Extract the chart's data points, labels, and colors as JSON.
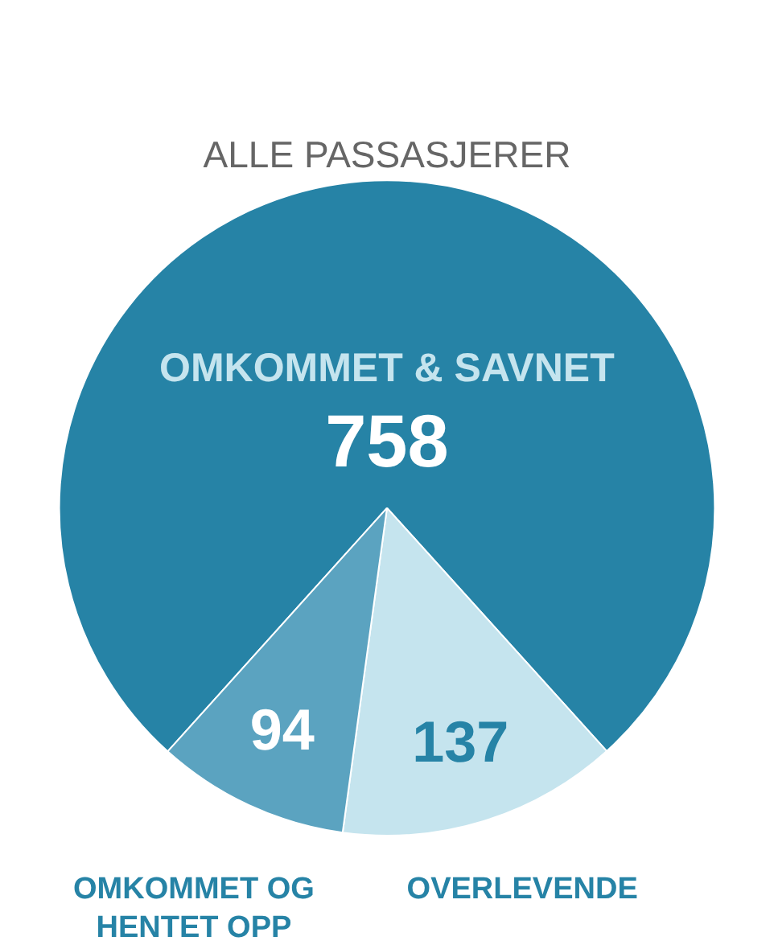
{
  "chart_data": {
    "type": "pie",
    "title": "ALLE PASSASJERER",
    "categories": [
      "OMKOMMET & SAVNET",
      "OVERLEVENDE",
      "OMKOMMET OG HENTET OPP"
    ],
    "values": [
      758,
      137,
      94
    ],
    "colors": [
      "#2683a6",
      "#c5e4ee",
      "#5ba3c0"
    ],
    "data_labels": true,
    "legend": false
  }
}
